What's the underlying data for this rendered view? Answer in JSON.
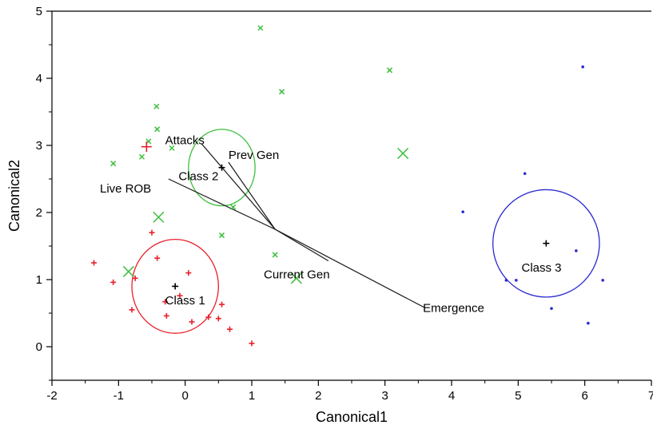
{
  "chart_data": {
    "type": "scatter",
    "xlabel": "Canonical1",
    "ylabel": "Canonical2",
    "xlim": [
      -2,
      7
    ],
    "ylim": [
      -0.5,
      5
    ],
    "xticks": [
      "-2",
      "-1",
      "0",
      "1",
      "2",
      "3",
      "4",
      "5",
      "6",
      "7"
    ],
    "yticks": [
      "0",
      "1",
      "2",
      "3",
      "4",
      "5"
    ],
    "grid": false,
    "series": [
      {
        "marker": "plus",
        "color": "#e8202a",
        "points": [
          [
            -1.37,
            1.25
          ],
          [
            -1.08,
            0.96
          ],
          [
            -0.8,
            0.55
          ],
          [
            -0.75,
            1.02
          ],
          [
            -0.5,
            1.7
          ],
          [
            -0.42,
            1.32
          ],
          [
            -0.3,
            0.67
          ],
          [
            -0.28,
            0.46
          ],
          [
            -0.08,
            0.76
          ],
          [
            0.05,
            1.1
          ],
          [
            0.1,
            0.37
          ],
          [
            0.35,
            0.44
          ],
          [
            0.5,
            0.42
          ],
          [
            0.55,
            0.63
          ],
          [
            0.67,
            0.26
          ],
          [
            1.0,
            0.05
          ]
        ]
      },
      {
        "marker": "x",
        "color": "#3cbf3c",
        "points": [
          [
            -1.08,
            2.73
          ],
          [
            -0.65,
            2.83
          ],
          [
            -0.55,
            3.06
          ],
          [
            -0.43,
            3.58
          ],
          [
            -0.42,
            3.24
          ],
          [
            -0.2,
            2.96
          ],
          [
            0.55,
            1.66
          ],
          [
            0.72,
            2.08
          ],
          [
            1.13,
            4.75
          ],
          [
            1.35,
            1.37
          ],
          [
            1.45,
            3.8
          ],
          [
            3.07,
            4.12
          ]
        ]
      },
      {
        "marker": "dot",
        "color": "#2a2ad0",
        "points": [
          [
            4.17,
            2.01
          ],
          [
            4.82,
            0.99
          ],
          [
            4.97,
            0.99
          ],
          [
            5.1,
            2.58
          ],
          [
            5.5,
            0.57
          ],
          [
            5.87,
            1.43
          ],
          [
            5.97,
            4.17
          ],
          [
            6.05,
            0.35
          ],
          [
            6.27,
            0.99
          ]
        ]
      }
    ],
    "large_markers": [
      {
        "marker": "plus",
        "color": "#e8202a",
        "point": [
          -0.58,
          2.98
        ]
      },
      {
        "marker": "x",
        "color": "#3cbf3c",
        "point": [
          -0.4,
          1.93
        ]
      },
      {
        "marker": "x",
        "color": "#3cbf3c",
        "point": [
          -0.85,
          1.12
        ]
      },
      {
        "marker": "x",
        "color": "#3cbf3c",
        "point": [
          1.67,
          1.02
        ]
      },
      {
        "marker": "x",
        "color": "#3cbf3c",
        "point": [
          3.27,
          2.88
        ]
      }
    ],
    "class_circles": [
      {
        "label": "Class 1",
        "color": "#e8202a",
        "center": [
          -0.15,
          0.9
        ],
        "rx": 0.65,
        "ry": 0.7,
        "label_at": [
          -0.3,
          0.63
        ]
      },
      {
        "label": "Class 2",
        "color": "#3cbf3c",
        "center": [
          0.55,
          2.67
        ],
        "rx": 0.5,
        "ry": 0.57,
        "label_at": [
          -0.1,
          2.48
        ]
      },
      {
        "label": "Class 3",
        "color": "#2a2ad0",
        "center": [
          5.42,
          1.54
        ],
        "rx": 0.8,
        "ry": 0.8,
        "label_at": [
          5.05,
          1.12
        ]
      }
    ],
    "biplot_origin": [
      1.35,
      1.75
    ],
    "biplot_rays": [
      {
        "label": "Attacks",
        "end": [
          0.25,
          3.02
        ],
        "label_at": [
          -0.3,
          3.02
        ]
      },
      {
        "label": "Prev Gen",
        "end": [
          0.65,
          2.75
        ],
        "label_at": [
          0.65,
          2.8
        ]
      },
      {
        "label": "Live ROB",
        "end": [
          -0.25,
          2.5
        ],
        "label_at": [
          -1.28,
          2.3
        ]
      },
      {
        "label": "Current Gen",
        "end": [
          2.15,
          1.28
        ],
        "label_at": [
          1.18,
          1.02
        ]
      },
      {
        "label": "Emergence",
        "end": [
          3.6,
          0.58
        ],
        "label_at": [
          3.57,
          0.52
        ]
      }
    ]
  }
}
